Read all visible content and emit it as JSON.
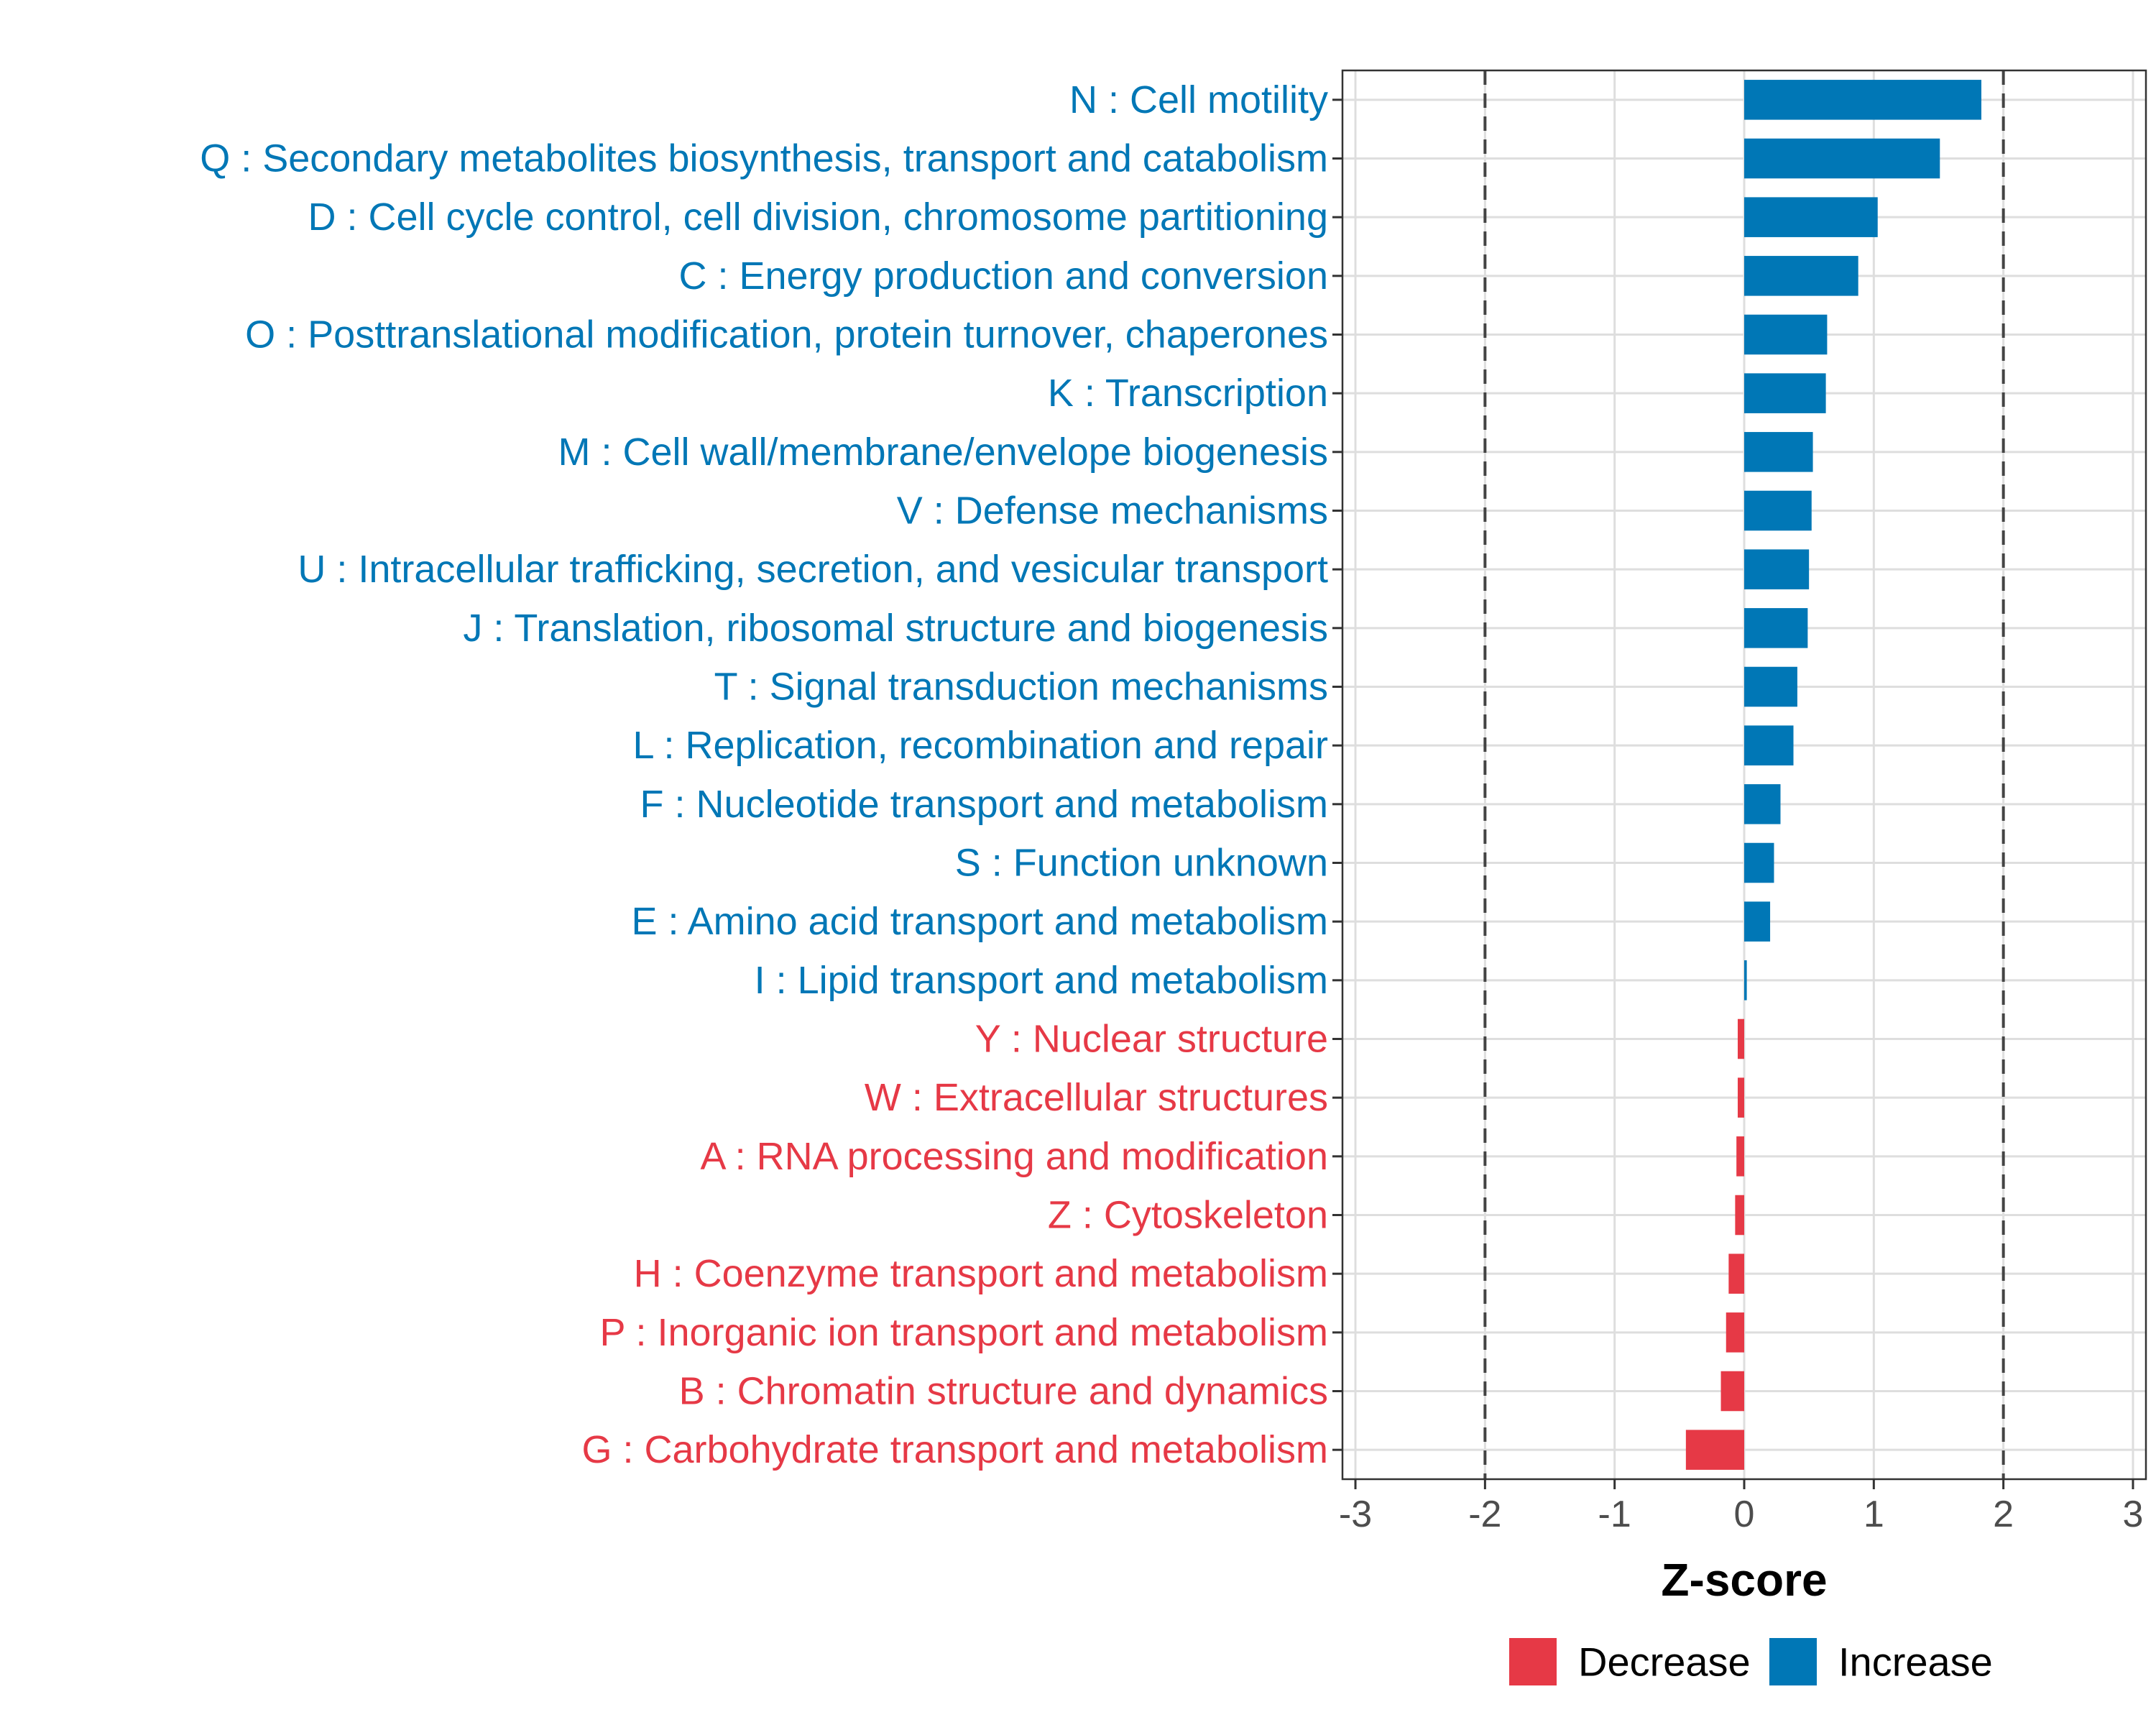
{
  "chart_data": {
    "type": "bar",
    "orientation": "horizontal",
    "xlabel": "Z-score",
    "ylabel": "",
    "xlim": [
      -3.1,
      3.1
    ],
    "xticks": [
      -3,
      -2,
      -1,
      0,
      1,
      2,
      3
    ],
    "xtick_labels": [
      "-3",
      "-2",
      "-1",
      "0",
      "1",
      "2",
      "3"
    ],
    "reference_lines": [
      -2,
      2
    ],
    "grid": true,
    "legend_position": "bottom",
    "colors": {
      "Decrease": "#e63946",
      "Increase": "#0077b6"
    },
    "legend": [
      {
        "name": "Decrease",
        "color": "#e63946"
      },
      {
        "name": "Increase",
        "color": "#0077b6"
      }
    ],
    "categories": [
      "N : Cell motility",
      "Q : Secondary metabolites biosynthesis, transport and catabolism",
      "D : Cell cycle control, cell division, chromosome partitioning",
      "C : Energy production and conversion",
      "O : Posttranslational modification, protein turnover, chaperones",
      "K : Transcription",
      "M : Cell wall/membrane/envelope biogenesis",
      "V : Defense mechanisms",
      "U : Intracellular trafficking, secretion, and vesicular transport",
      "J : Translation, ribosomal structure and biogenesis",
      "T : Signal transduction mechanisms",
      "L : Replication, recombination and repair",
      "F : Nucleotide transport and metabolism",
      "S : Function unknown",
      "E : Amino acid transport and metabolism",
      "I : Lipid transport and metabolism",
      "Y : Nuclear structure",
      "W : Extracellular structures",
      "A : RNA processing and modification",
      "Z : Cytoskeleton",
      "H : Coenzyme transport and metabolism",
      "P : Inorganic ion transport and metabolism",
      "B : Chromatin structure and dynamics",
      "G : Carbohydrate transport and metabolism"
    ],
    "values": [
      1.83,
      1.51,
      1.03,
      0.88,
      0.64,
      0.63,
      0.53,
      0.52,
      0.5,
      0.49,
      0.41,
      0.38,
      0.28,
      0.23,
      0.2,
      0.02,
      -0.05,
      -0.05,
      -0.06,
      -0.07,
      -0.12,
      -0.14,
      -0.18,
      -0.45
    ],
    "groups": [
      "Increase",
      "Increase",
      "Increase",
      "Increase",
      "Increase",
      "Increase",
      "Increase",
      "Increase",
      "Increase",
      "Increase",
      "Increase",
      "Increase",
      "Increase",
      "Increase",
      "Increase",
      "Increase",
      "Decrease",
      "Decrease",
      "Decrease",
      "Decrease",
      "Decrease",
      "Decrease",
      "Decrease",
      "Decrease"
    ]
  }
}
